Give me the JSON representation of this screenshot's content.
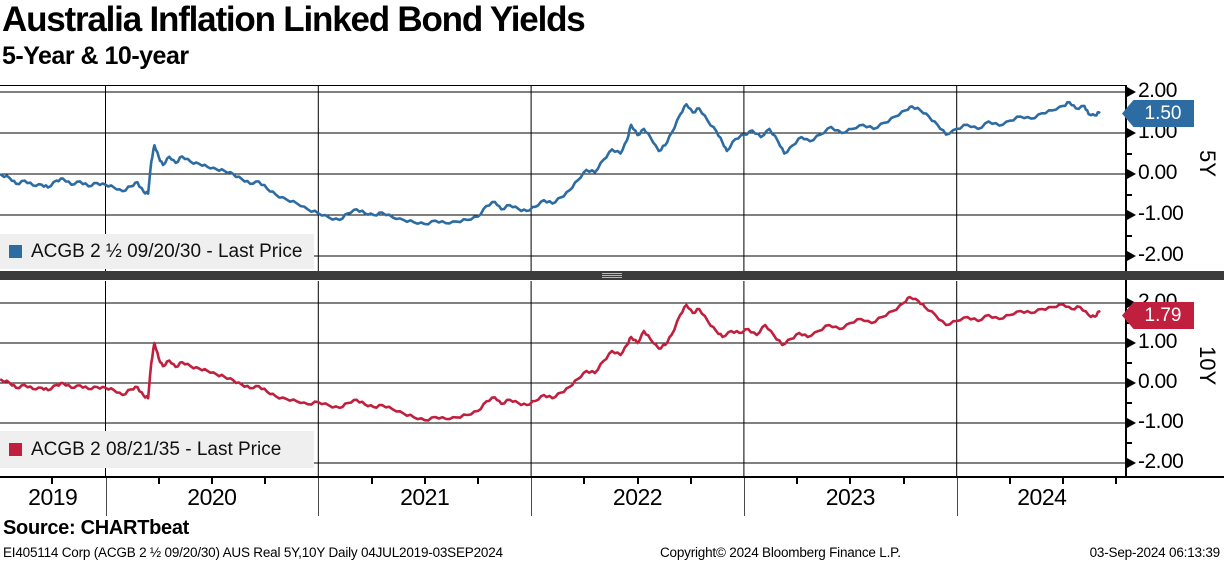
{
  "title": "Australia Inflation Linked Bond Yields",
  "subtitle": "5-Year & 10-year",
  "source_label": "Source: CHARTbeat",
  "footer": {
    "left": "EI405114 Corp (ACGB 2 ½ 09/20/30) AUS Real 5Y,10Y  Daily 04JUL2019-03SEP2024",
    "center": "Copyright© 2024 Bloomberg Finance L.P.",
    "right": "03-Sep-2024 06:13:39"
  },
  "colors": {
    "line_5y": "#2D6CA2",
    "line_10y": "#C0203E",
    "grid": "#000000",
    "separator": "#3b3b3b",
    "legend_bg": "#efefef",
    "badge_5y": "#2D6CA2",
    "badge_10y": "#C0203E"
  },
  "x_axis": {
    "years": [
      "2019",
      "2020",
      "2021",
      "2022",
      "2023",
      "2024"
    ],
    "range_label": "04JUL2019-03SEP2024"
  },
  "panels": [
    {
      "id": "5y",
      "axis_label": "5Y",
      "legend": "ACGB 2 ½ 09/20/30 - Last Price",
      "last_price": "1.50",
      "y_ticks": [
        "2.00",
        "1.00",
        "0.00",
        "-1.00",
        "-2.00"
      ]
    },
    {
      "id": "10y",
      "axis_label": "10Y",
      "legend": "ACGB 2 08/21/35 - Last Price",
      "last_price": "1.79",
      "y_ticks": [
        "2.00",
        "1.00",
        "0.00",
        "-1.00",
        "-2.00"
      ]
    }
  ],
  "chart_data": [
    {
      "type": "line",
      "panel": "5Y",
      "name": "ACGB 2 ½ 09/20/30 - Last Price",
      "color": "#2D6CA2",
      "x_unit": "decimal_year",
      "xlim": [
        2019.51,
        2024.8
      ],
      "ylim": [
        -2.4,
        2.2
      ],
      "y_gridlines": [
        2,
        1,
        0,
        -1,
        -2
      ],
      "last_price": 1.5,
      "points": [
        [
          2019.51,
          -0.02
        ],
        [
          2019.55,
          -0.1
        ],
        [
          2019.58,
          -0.24
        ],
        [
          2019.62,
          -0.16
        ],
        [
          2019.66,
          -0.28
        ],
        [
          2019.7,
          -0.26
        ],
        [
          2019.73,
          -0.33
        ],
        [
          2019.77,
          -0.16
        ],
        [
          2019.8,
          -0.11
        ],
        [
          2019.84,
          -0.26
        ],
        [
          2019.88,
          -0.18
        ],
        [
          2019.92,
          -0.3
        ],
        [
          2019.96,
          -0.22
        ],
        [
          2020.0,
          -0.26
        ],
        [
          2020.04,
          -0.33
        ],
        [
          2020.08,
          -0.42
        ],
        [
          2020.12,
          -0.3
        ],
        [
          2020.15,
          -0.2
        ],
        [
          2020.18,
          -0.44
        ],
        [
          2020.2,
          -0.48
        ],
        [
          2020.215,
          0.3
        ],
        [
          2020.23,
          0.7
        ],
        [
          2020.25,
          0.42
        ],
        [
          2020.27,
          0.22
        ],
        [
          2020.3,
          0.42
        ],
        [
          2020.33,
          0.27
        ],
        [
          2020.36,
          0.43
        ],
        [
          2020.4,
          0.3
        ],
        [
          2020.44,
          0.25
        ],
        [
          2020.48,
          0.17
        ],
        [
          2020.52,
          0.12
        ],
        [
          2020.56,
          0.07
        ],
        [
          2020.6,
          0.0
        ],
        [
          2020.64,
          -0.12
        ],
        [
          2020.68,
          -0.24
        ],
        [
          2020.72,
          -0.18
        ],
        [
          2020.76,
          -0.36
        ],
        [
          2020.8,
          -0.5
        ],
        [
          2020.85,
          -0.62
        ],
        [
          2020.9,
          -0.72
        ],
        [
          2020.95,
          -0.86
        ],
        [
          2021.0,
          -0.96
        ],
        [
          2021.05,
          -1.06
        ],
        [
          2021.1,
          -1.12
        ],
        [
          2021.14,
          -0.96
        ],
        [
          2021.18,
          -0.86
        ],
        [
          2021.22,
          -0.96
        ],
        [
          2021.26,
          -1.0
        ],
        [
          2021.3,
          -0.94
        ],
        [
          2021.35,
          -1.06
        ],
        [
          2021.4,
          -1.12
        ],
        [
          2021.45,
          -1.18
        ],
        [
          2021.5,
          -1.22
        ],
        [
          2021.55,
          -1.14
        ],
        [
          2021.6,
          -1.2
        ],
        [
          2021.65,
          -1.16
        ],
        [
          2021.7,
          -1.12
        ],
        [
          2021.75,
          -1.04
        ],
        [
          2021.79,
          -0.78
        ],
        [
          2021.83,
          -0.68
        ],
        [
          2021.86,
          -0.86
        ],
        [
          2021.9,
          -0.76
        ],
        [
          2021.94,
          -0.85
        ],
        [
          2021.98,
          -0.9
        ],
        [
          2022.02,
          -0.8
        ],
        [
          2022.06,
          -0.64
        ],
        [
          2022.1,
          -0.72
        ],
        [
          2022.14,
          -0.57
        ],
        [
          2022.18,
          -0.4
        ],
        [
          2022.22,
          -0.15
        ],
        [
          2022.26,
          0.1
        ],
        [
          2022.3,
          0.04
        ],
        [
          2022.34,
          0.35
        ],
        [
          2022.38,
          0.6
        ],
        [
          2022.42,
          0.5
        ],
        [
          2022.45,
          0.82
        ],
        [
          2022.47,
          1.2
        ],
        [
          2022.5,
          0.95
        ],
        [
          2022.53,
          1.1
        ],
        [
          2022.56,
          0.9
        ],
        [
          2022.6,
          0.56
        ],
        [
          2022.63,
          0.7
        ],
        [
          2022.66,
          1.0
        ],
        [
          2022.7,
          1.45
        ],
        [
          2022.73,
          1.7
        ],
        [
          2022.76,
          1.5
        ],
        [
          2022.79,
          1.6
        ],
        [
          2022.83,
          1.3
        ],
        [
          2022.87,
          1.05
        ],
        [
          2022.9,
          0.76
        ],
        [
          2022.92,
          0.56
        ],
        [
          2022.96,
          0.85
        ],
        [
          2023.0,
          0.96
        ],
        [
          2023.04,
          1.06
        ],
        [
          2023.08,
          0.9
        ],
        [
          2023.12,
          1.1
        ],
        [
          2023.16,
          0.8
        ],
        [
          2023.19,
          0.5
        ],
        [
          2023.23,
          0.7
        ],
        [
          2023.27,
          0.9
        ],
        [
          2023.31,
          0.8
        ],
        [
          2023.36,
          0.96
        ],
        [
          2023.41,
          1.15
        ],
        [
          2023.46,
          1.0
        ],
        [
          2023.51,
          1.1
        ],
        [
          2023.56,
          1.2
        ],
        [
          2023.61,
          1.1
        ],
        [
          2023.66,
          1.25
        ],
        [
          2023.71,
          1.4
        ],
        [
          2023.76,
          1.55
        ],
        [
          2023.79,
          1.65
        ],
        [
          2023.83,
          1.55
        ],
        [
          2023.87,
          1.4
        ],
        [
          2023.91,
          1.2
        ],
        [
          2023.95,
          0.96
        ],
        [
          2024.0,
          1.1
        ],
        [
          2024.05,
          1.2
        ],
        [
          2024.1,
          1.1
        ],
        [
          2024.15,
          1.28
        ],
        [
          2024.2,
          1.18
        ],
        [
          2024.25,
          1.3
        ],
        [
          2024.3,
          1.4
        ],
        [
          2024.35,
          1.35
        ],
        [
          2024.4,
          1.48
        ],
        [
          2024.45,
          1.55
        ],
        [
          2024.5,
          1.66
        ],
        [
          2024.53,
          1.75
        ],
        [
          2024.56,
          1.6
        ],
        [
          2024.6,
          1.66
        ],
        [
          2024.62,
          1.46
        ],
        [
          2024.65,
          1.43
        ],
        [
          2024.67,
          1.5
        ]
      ]
    },
    {
      "type": "line",
      "panel": "10Y",
      "name": "ACGB 2 08/21/35 - Last Price",
      "color": "#C0203E",
      "x_unit": "decimal_year",
      "xlim": [
        2019.51,
        2024.8
      ],
      "ylim": [
        -2.4,
        2.55
      ],
      "y_gridlines": [
        2,
        1,
        0,
        -1,
        -2
      ],
      "last_price": 1.79,
      "points": [
        [
          2019.51,
          0.08
        ],
        [
          2019.55,
          0.0
        ],
        [
          2019.58,
          -0.12
        ],
        [
          2019.62,
          -0.05
        ],
        [
          2019.66,
          -0.15
        ],
        [
          2019.7,
          -0.12
        ],
        [
          2019.73,
          -0.18
        ],
        [
          2019.77,
          -0.05
        ],
        [
          2019.8,
          0.0
        ],
        [
          2019.84,
          -0.12
        ],
        [
          2019.88,
          -0.06
        ],
        [
          2019.92,
          -0.15
        ],
        [
          2019.96,
          -0.1
        ],
        [
          2020.0,
          -0.12
        ],
        [
          2020.04,
          -0.18
        ],
        [
          2020.08,
          -0.3
        ],
        [
          2020.12,
          -0.16
        ],
        [
          2020.15,
          -0.1
        ],
        [
          2020.18,
          -0.32
        ],
        [
          2020.2,
          -0.38
        ],
        [
          2020.215,
          0.5
        ],
        [
          2020.23,
          1.0
        ],
        [
          2020.25,
          0.62
        ],
        [
          2020.27,
          0.42
        ],
        [
          2020.3,
          0.56
        ],
        [
          2020.33,
          0.4
        ],
        [
          2020.36,
          0.52
        ],
        [
          2020.4,
          0.42
        ],
        [
          2020.44,
          0.36
        ],
        [
          2020.48,
          0.3
        ],
        [
          2020.52,
          0.22
        ],
        [
          2020.56,
          0.15
        ],
        [
          2020.6,
          0.07
        ],
        [
          2020.64,
          -0.04
        ],
        [
          2020.68,
          -0.13
        ],
        [
          2020.72,
          -0.08
        ],
        [
          2020.76,
          -0.22
        ],
        [
          2020.8,
          -0.33
        ],
        [
          2020.85,
          -0.4
        ],
        [
          2020.9,
          -0.46
        ],
        [
          2020.95,
          -0.53
        ],
        [
          2021.0,
          -0.48
        ],
        [
          2021.05,
          -0.56
        ],
        [
          2021.1,
          -0.62
        ],
        [
          2021.14,
          -0.5
        ],
        [
          2021.18,
          -0.42
        ],
        [
          2021.22,
          -0.54
        ],
        [
          2021.26,
          -0.6
        ],
        [
          2021.3,
          -0.55
        ],
        [
          2021.35,
          -0.66
        ],
        [
          2021.4,
          -0.76
        ],
        [
          2021.45,
          -0.86
        ],
        [
          2021.5,
          -0.93
        ],
        [
          2021.55,
          -0.85
        ],
        [
          2021.6,
          -0.9
        ],
        [
          2021.65,
          -0.86
        ],
        [
          2021.7,
          -0.8
        ],
        [
          2021.75,
          -0.7
        ],
        [
          2021.79,
          -0.46
        ],
        [
          2021.83,
          -0.36
        ],
        [
          2021.86,
          -0.52
        ],
        [
          2021.9,
          -0.42
        ],
        [
          2021.94,
          -0.5
        ],
        [
          2021.98,
          -0.55
        ],
        [
          2022.02,
          -0.45
        ],
        [
          2022.06,
          -0.3
        ],
        [
          2022.1,
          -0.38
        ],
        [
          2022.14,
          -0.24
        ],
        [
          2022.18,
          -0.1
        ],
        [
          2022.22,
          0.1
        ],
        [
          2022.26,
          0.3
        ],
        [
          2022.3,
          0.25
        ],
        [
          2022.34,
          0.55
        ],
        [
          2022.38,
          0.8
        ],
        [
          2022.42,
          0.7
        ],
        [
          2022.45,
          0.95
        ],
        [
          2022.47,
          1.15
        ],
        [
          2022.5,
          1.0
        ],
        [
          2022.53,
          1.3
        ],
        [
          2022.56,
          1.1
        ],
        [
          2022.6,
          0.86
        ],
        [
          2022.63,
          0.95
        ],
        [
          2022.66,
          1.2
        ],
        [
          2022.7,
          1.7
        ],
        [
          2022.73,
          1.95
        ],
        [
          2022.76,
          1.75
        ],
        [
          2022.79,
          1.85
        ],
        [
          2022.83,
          1.55
        ],
        [
          2022.87,
          1.3
        ],
        [
          2022.9,
          1.15
        ],
        [
          2022.94,
          1.3
        ],
        [
          2022.98,
          1.25
        ],
        [
          2023.02,
          1.35
        ],
        [
          2023.06,
          1.2
        ],
        [
          2023.1,
          1.45
        ],
        [
          2023.14,
          1.2
        ],
        [
          2023.18,
          0.95
        ],
        [
          2023.22,
          1.1
        ],
        [
          2023.26,
          1.25
        ],
        [
          2023.3,
          1.15
        ],
        [
          2023.35,
          1.3
        ],
        [
          2023.4,
          1.45
        ],
        [
          2023.45,
          1.35
        ],
        [
          2023.5,
          1.5
        ],
        [
          2023.55,
          1.6
        ],
        [
          2023.6,
          1.5
        ],
        [
          2023.65,
          1.65
        ],
        [
          2023.7,
          1.8
        ],
        [
          2023.75,
          2.0
        ],
        [
          2023.78,
          2.15
        ],
        [
          2023.82,
          2.05
        ],
        [
          2023.85,
          1.9
        ],
        [
          2023.9,
          1.7
        ],
        [
          2023.95,
          1.45
        ],
        [
          2024.0,
          1.55
        ],
        [
          2024.05,
          1.65
        ],
        [
          2024.1,
          1.55
        ],
        [
          2024.15,
          1.7
        ],
        [
          2024.2,
          1.6
        ],
        [
          2024.25,
          1.7
        ],
        [
          2024.3,
          1.8
        ],
        [
          2024.35,
          1.75
        ],
        [
          2024.4,
          1.85
        ],
        [
          2024.45,
          1.9
        ],
        [
          2024.5,
          1.96
        ],
        [
          2024.54,
          1.85
        ],
        [
          2024.58,
          1.9
        ],
        [
          2024.62,
          1.7
        ],
        [
          2024.65,
          1.66
        ],
        [
          2024.67,
          1.79
        ]
      ]
    }
  ]
}
